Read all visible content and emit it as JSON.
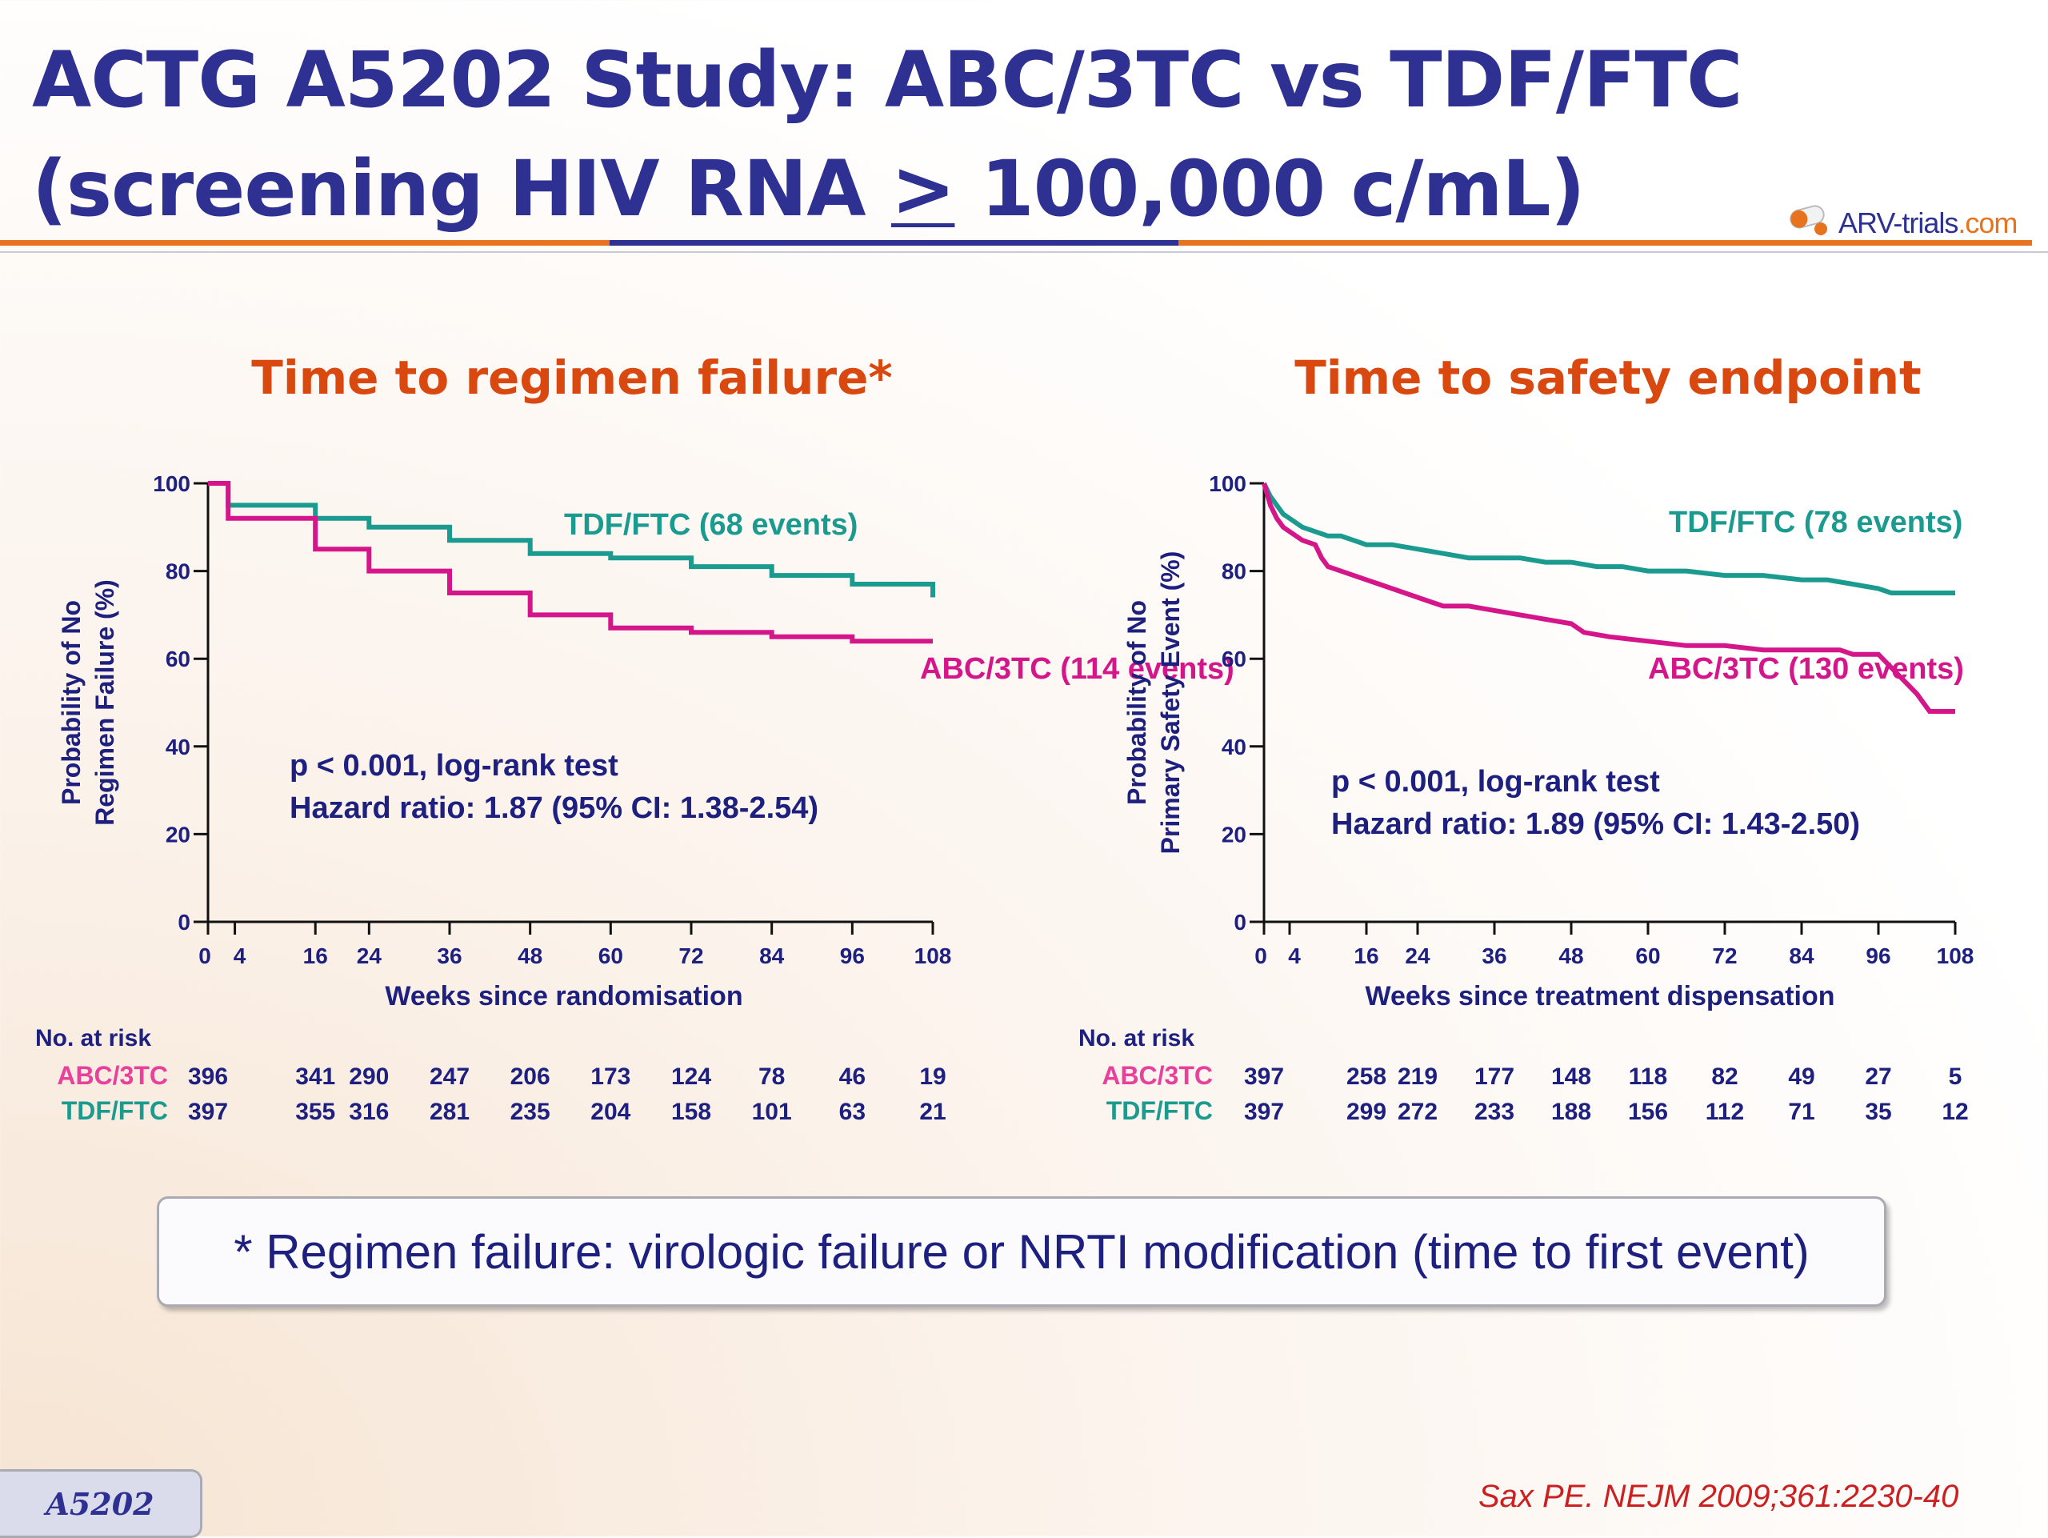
{
  "title": {
    "line1": "ACTG A5202 Study: ABC/3TC vs TDF/FTC",
    "line2_prefix": "(screening HIV RNA ",
    "line2_symbol": ">",
    "line2_suffix": " 100,000 c/mL)"
  },
  "logo": {
    "text_main": "ARV-trials",
    "text_tld": ".com"
  },
  "chart_data": [
    {
      "type": "line",
      "title": "Time to regimen failure*",
      "ylabel_line1": "Probability of No",
      "ylabel_line2": "Regimen Failure (%)",
      "xlabel": "Weeks since randomisation",
      "ylim": [
        0,
        100
      ],
      "xlim": [
        0,
        108
      ],
      "yticks": [
        0,
        20,
        40,
        60,
        80,
        100
      ],
      "xticks": [
        0,
        4,
        16,
        24,
        36,
        48,
        60,
        72,
        84,
        96,
        108
      ],
      "series": [
        {
          "name": "TDF/FTC",
          "label": "TDF/FTC (68 events)",
          "color": "#1b9b8f",
          "step_points": [
            [
              0,
              100
            ],
            [
              3,
              100
            ],
            [
              3,
              95
            ],
            [
              16,
              95
            ],
            [
              16,
              92
            ],
            [
              24,
              92
            ],
            [
              24,
              90
            ],
            [
              36,
              90
            ],
            [
              36,
              87
            ],
            [
              48,
              87
            ],
            [
              48,
              84
            ],
            [
              60,
              84
            ],
            [
              60,
              83
            ],
            [
              72,
              83
            ],
            [
              72,
              81
            ],
            [
              84,
              81
            ],
            [
              84,
              79
            ],
            [
              96,
              79
            ],
            [
              96,
              77
            ],
            [
              108,
              77
            ],
            [
              108,
              74
            ]
          ]
        },
        {
          "name": "ABC/3TC",
          "label": "ABC/3TC (114 events)",
          "color": "#d4168a",
          "step_points": [
            [
              0,
              100
            ],
            [
              3,
              100
            ],
            [
              3,
              92
            ],
            [
              16,
              92
            ],
            [
              16,
              85
            ],
            [
              24,
              85
            ],
            [
              24,
              80
            ],
            [
              36,
              80
            ],
            [
              36,
              75
            ],
            [
              48,
              75
            ],
            [
              48,
              70
            ],
            [
              60,
              70
            ],
            [
              60,
              67
            ],
            [
              72,
              67
            ],
            [
              72,
              66
            ],
            [
              84,
              66
            ],
            [
              84,
              65
            ],
            [
              96,
              65
            ],
            [
              96,
              64
            ],
            [
              108,
              64
            ]
          ]
        }
      ],
      "stats_line1": "p < 0.001, log-rank test",
      "stats_line2": "Hazard ratio: 1.87 (95% CI: 1.38-2.54)",
      "at_risk": {
        "heading": "No. at risk",
        "rows": [
          {
            "name": "ABC/3TC",
            "color": "#e8409b",
            "values": [
              "396",
              "341",
              "290",
              "247",
              "206",
              "173",
              "124",
              "78",
              "46",
              "19"
            ]
          },
          {
            "name": "TDF/FTC",
            "color": "#1b9b8f",
            "values": [
              "397",
              "355",
              "316",
              "281",
              "235",
              "204",
              "158",
              "101",
              "63",
              "21"
            ]
          }
        ],
        "weeks": [
          0,
          16,
          24,
          36,
          48,
          60,
          72,
          84,
          96,
          108
        ]
      }
    },
    {
      "type": "line",
      "title": "Time to safety endpoint",
      "ylabel_line1": "Probability of No",
      "ylabel_line2": "Primary Safety Event (%)",
      "xlabel": "Weeks since treatment dispensation",
      "ylim": [
        0,
        100
      ],
      "xlim": [
        0,
        108
      ],
      "yticks": [
        0,
        20,
        40,
        60,
        80,
        100
      ],
      "xticks": [
        0,
        4,
        16,
        24,
        36,
        48,
        60,
        72,
        84,
        96,
        108
      ],
      "series": [
        {
          "name": "TDF/FTC",
          "label": "TDF/FTC (78 events)",
          "color": "#1b9b8f",
          "step_points": [
            [
              0,
              100
            ],
            [
              1,
              97
            ],
            [
              2,
              95
            ],
            [
              3,
              93
            ],
            [
              4,
              92
            ],
            [
              5,
              91
            ],
            [
              6,
              90
            ],
            [
              8,
              89
            ],
            [
              10,
              88
            ],
            [
              12,
              88
            ],
            [
              14,
              87
            ],
            [
              16,
              86
            ],
            [
              20,
              86
            ],
            [
              24,
              85
            ],
            [
              28,
              84
            ],
            [
              32,
              83
            ],
            [
              40,
              83
            ],
            [
              44,
              82
            ],
            [
              48,
              82
            ],
            [
              52,
              81
            ],
            [
              56,
              81
            ],
            [
              60,
              80
            ],
            [
              66,
              80
            ],
            [
              72,
              79
            ],
            [
              78,
              79
            ],
            [
              84,
              78
            ],
            [
              88,
              78
            ],
            [
              92,
              77
            ],
            [
              96,
              76
            ],
            [
              98,
              75
            ],
            [
              104,
              75
            ],
            [
              108,
              75
            ]
          ]
        },
        {
          "name": "ABC/3TC",
          "label": "ABC/3TC (130 events)",
          "color": "#d4168a",
          "step_points": [
            [
              0,
              100
            ],
            [
              1,
              95
            ],
            [
              2,
              92
            ],
            [
              3,
              90
            ],
            [
              4,
              89
            ],
            [
              6,
              87
            ],
            [
              8,
              86
            ],
            [
              9,
              83
            ],
            [
              10,
              81
            ],
            [
              12,
              80
            ],
            [
              14,
              79
            ],
            [
              16,
              78
            ],
            [
              18,
              77
            ],
            [
              20,
              76
            ],
            [
              22,
              75
            ],
            [
              24,
              74
            ],
            [
              26,
              73
            ],
            [
              28,
              72
            ],
            [
              32,
              72
            ],
            [
              36,
              71
            ],
            [
              40,
              70
            ],
            [
              44,
              69
            ],
            [
              48,
              68
            ],
            [
              50,
              66
            ],
            [
              54,
              65
            ],
            [
              60,
              64
            ],
            [
              66,
              63
            ],
            [
              72,
              63
            ],
            [
              78,
              62
            ],
            [
              84,
              62
            ],
            [
              90,
              62
            ],
            [
              92,
              61
            ],
            [
              96,
              61
            ],
            [
              98,
              58
            ],
            [
              100,
              55
            ],
            [
              102,
              52
            ],
            [
              104,
              48
            ],
            [
              108,
              48
            ]
          ]
        }
      ],
      "stats_line1": "p < 0.001, log-rank test",
      "stats_line2": "Hazard ratio: 1.89 (95% CI: 1.43-2.50)",
      "at_risk": {
        "heading": "No. at risk",
        "rows": [
          {
            "name": "ABC/3TC",
            "color": "#e8409b",
            "values": [
              "397",
              "258",
              "219",
              "177",
              "148",
              "118",
              "82",
              "49",
              "27",
              "5"
            ]
          },
          {
            "name": "TDF/FTC",
            "color": "#1b9b8f",
            "values": [
              "397",
              "299",
              "272",
              "233",
              "188",
              "156",
              "112",
              "71",
              "35",
              "12"
            ]
          }
        ],
        "weeks": [
          0,
          16,
          24,
          36,
          48,
          60,
          72,
          84,
          96,
          108
        ]
      }
    }
  ],
  "footnote": "* Regimen failure: virologic failure or NRTI modification (time to first event)",
  "badge": "A5202",
  "citation": "Sax PE. NEJM 2009;361:2230-40",
  "colors": {
    "title": "#2e3192",
    "chart_title": "#d9480f",
    "axis_text": "#1e2080",
    "accent": "#e8731e"
  }
}
